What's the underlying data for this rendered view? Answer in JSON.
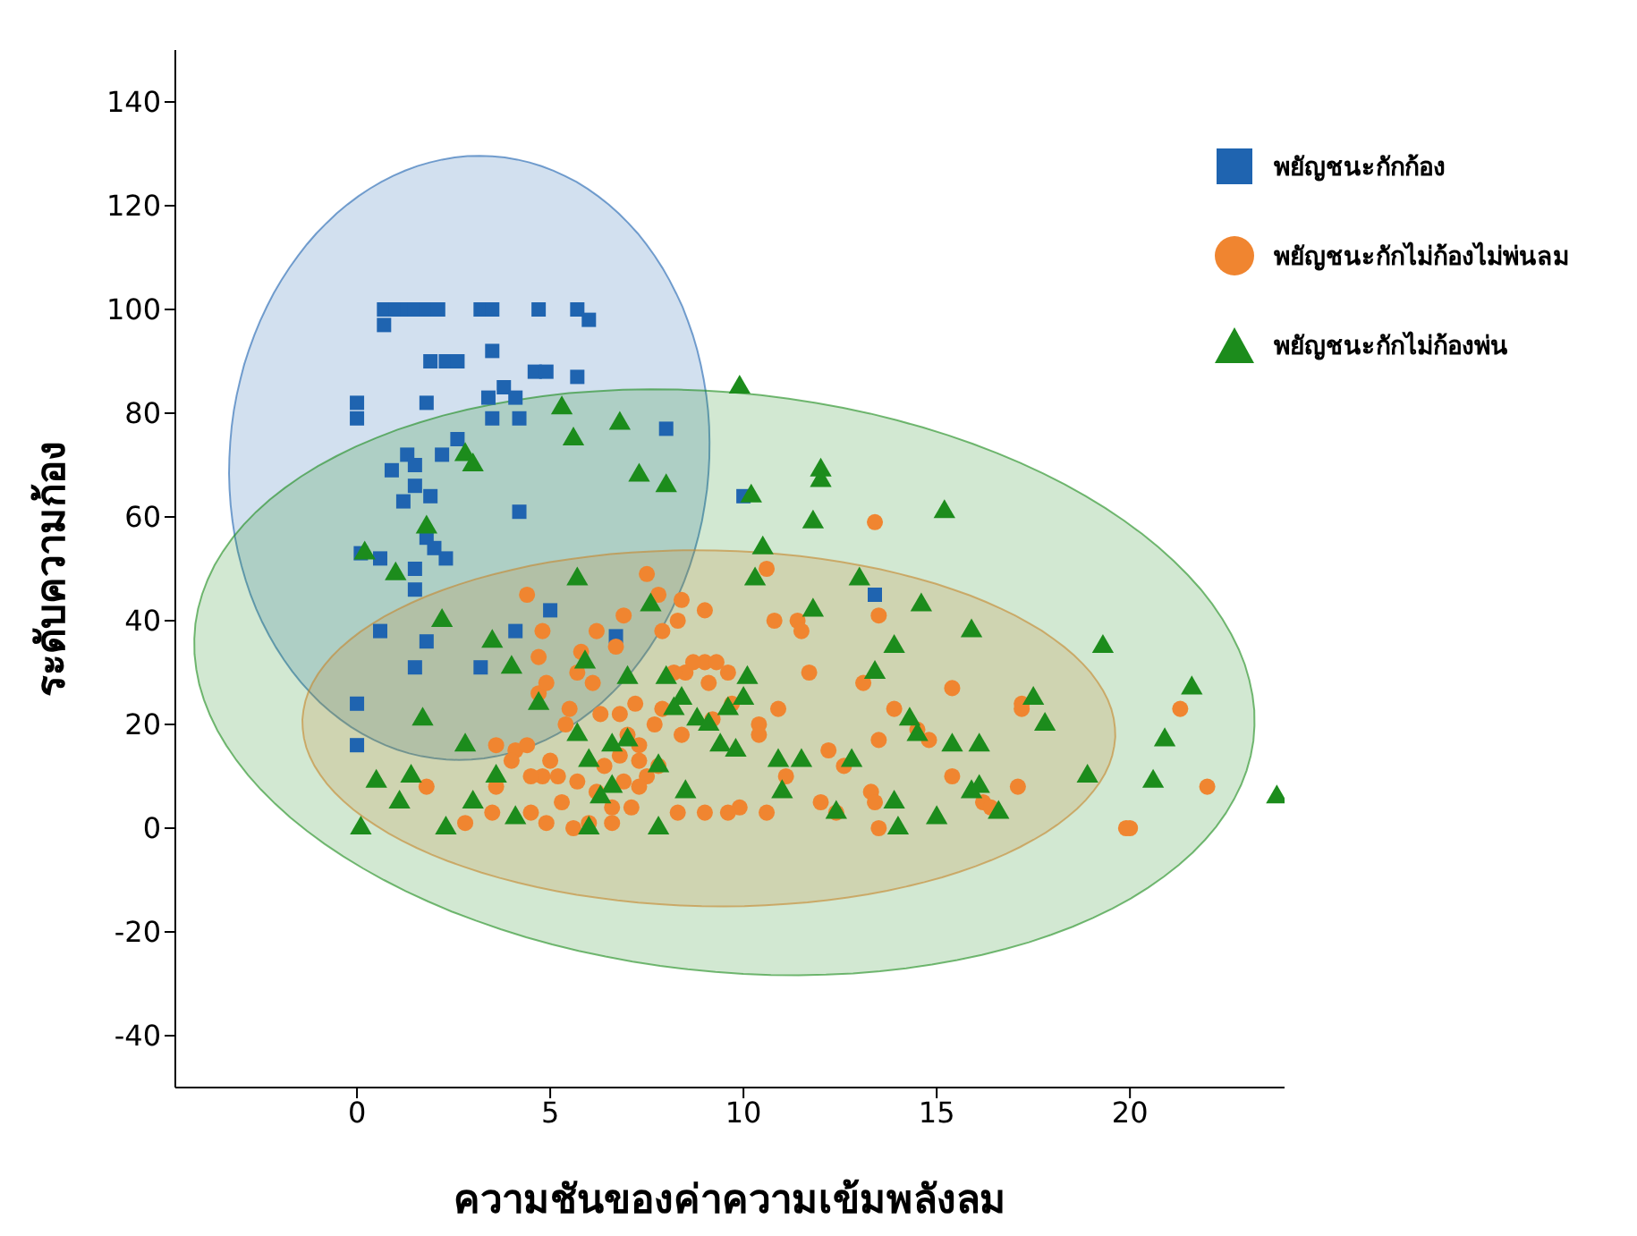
{
  "chart_data": {
    "type": "scatter",
    "xlabel": "ความชันของค่าความเข้มพลังลม",
    "ylabel": "ระดับความก้อง",
    "xlim": [
      -4.7,
      24
    ],
    "xticks": [
      0,
      5,
      10,
      15,
      20
    ],
    "ylim": [
      -50,
      150
    ],
    "yticks": [
      -40,
      -20,
      0,
      20,
      40,
      60,
      80,
      100,
      120,
      140
    ],
    "grid": false,
    "legend": "top right",
    "series": [
      {
        "name": "พยัญชนะกักก้อง",
        "color": "#1f64b0",
        "marker": "square",
        "x": [
          0.7,
          1,
          1.3,
          1.5,
          1.8,
          2.1,
          3.2,
          3.5,
          4.7,
          5.7,
          0.7,
          6,
          1.9,
          2.3,
          2.6,
          3.5,
          4.6,
          4.9,
          3.8,
          4.1,
          3.4,
          1.8,
          0,
          0,
          4.2,
          3.5,
          5.7,
          8,
          2.6,
          2.2,
          0.9,
          1.3,
          1.5,
          1.5,
          1.2,
          4.2,
          1.9,
          1.5,
          1.8,
          2,
          2.3,
          0.1,
          0.6,
          1.5,
          0.6,
          1.8,
          1.5,
          3.2,
          0,
          0,
          5,
          4.1,
          6.7,
          10,
          13.4
        ],
        "values": [
          100,
          100,
          100,
          100,
          100,
          100,
          100,
          100,
          100,
          100,
          97,
          98,
          90,
          90,
          90,
          92,
          88,
          88,
          85,
          83,
          83,
          82,
          82,
          79,
          79,
          79,
          87,
          77,
          75,
          72,
          69,
          72,
          70,
          66,
          63,
          61,
          64,
          50,
          56,
          54,
          52,
          53,
          52,
          46,
          38,
          36,
          31,
          31,
          24,
          16,
          42,
          38,
          37,
          64,
          45
        ]
      },
      {
        "name": "พยัญชนะกักไม่ก้องไม่พ่นลม",
        "color": "#f08530",
        "marker": "circle",
        "x": [
          13.4,
          10.6,
          7.5,
          7.8,
          4.4,
          8.4,
          8.3,
          6.2,
          4.8,
          6.9,
          9,
          5.8,
          4.7,
          6.7,
          7.9,
          10.8,
          11.4,
          11.5,
          13.5,
          11.7,
          13.1,
          15.4,
          17.2,
          13.9,
          14.8,
          13.5,
          12.2,
          12.6,
          13.3,
          13.4,
          13.5,
          12.4,
          12,
          11.1,
          10.6,
          9.9,
          9.6,
          9,
          10.4,
          10.4,
          10.9,
          9.7,
          9.2,
          9.1,
          9.6,
          8.5,
          9,
          8.7,
          8.2,
          9.3,
          7.2,
          7.9,
          7.7,
          8.4,
          6.8,
          7,
          7.3,
          6.3,
          5.4,
          5.5,
          6.1,
          5.7,
          4.7,
          4.9,
          3.6,
          4.1,
          4.4,
          5,
          5.2,
          5.7,
          5.3,
          5.6,
          6.2,
          6.6,
          7.1,
          6.9,
          7.5,
          7.3,
          7.8,
          8.3,
          4.8,
          4.5,
          4,
          3.6,
          3.5,
          2.8,
          1.8,
          4.5,
          4.9,
          6,
          6.6,
          6.4,
          6.8,
          7.3,
          16.2,
          16.4,
          17.1,
          15.4,
          14.5,
          19.9,
          20,
          21.3,
          22,
          17.2
        ],
        "values": [
          59,
          50,
          49,
          45,
          45,
          44,
          40,
          38,
          38,
          41,
          42,
          34,
          33,
          35,
          38,
          40,
          40,
          38,
          41,
          30,
          28,
          27,
          24,
          23,
          17,
          17,
          15,
          12,
          7,
          5,
          0,
          3,
          5,
          10,
          3,
          4,
          3,
          3,
          20,
          18,
          23,
          24,
          21,
          28,
          30,
          30,
          32,
          32,
          30,
          32,
          24,
          23,
          20,
          18,
          22,
          18,
          16,
          22,
          20,
          23,
          28,
          30,
          26,
          28,
          16,
          15,
          16,
          13,
          10,
          9,
          5,
          0,
          7,
          4,
          4,
          9,
          10,
          8,
          12,
          3,
          10,
          10,
          13,
          8,
          3,
          1,
          8,
          3,
          1,
          1,
          1,
          12,
          14,
          13,
          5,
          4,
          8,
          10,
          19,
          0,
          0,
          23,
          8,
          23
        ]
      },
      {
        "name": "พยัญชนะกักไม่ก้องพ่น",
        "color": "#1c8c1c",
        "marker": "triangle",
        "x": [
          9.9,
          5.3,
          6.8,
          5.6,
          2.8,
          3,
          7.3,
          8,
          10.2,
          12,
          12,
          11.8,
          15.2,
          1.8,
          0.2,
          1,
          5.7,
          7.6,
          10.5,
          10.3,
          13,
          2.2,
          3.5,
          4,
          5.9,
          7,
          8,
          8.4,
          10,
          10.1,
          11.8,
          14.6,
          15.9,
          13.9,
          13.4,
          19.3,
          21.6,
          17.5,
          17.8,
          20.9,
          14.3,
          14.5,
          15.4,
          16.1,
          10.9,
          11.5,
          12.8,
          18.9,
          20.6,
          11,
          13.9,
          15.9,
          16.1,
          16.6,
          15,
          12.4,
          14,
          23.8,
          4.7,
          1.7,
          2.8,
          5.7,
          7,
          6.6,
          8.2,
          8.8,
          9.1,
          9.6,
          9.4,
          9.8,
          6,
          3.6,
          0.5,
          1.4,
          1.1,
          3,
          6.3,
          6.6,
          7.8,
          8.5,
          0.1,
          2.3,
          4.1,
          6,
          7.8
        ],
        "values": [
          85,
          81,
          78,
          75,
          72,
          70,
          68,
          66,
          64,
          69,
          67,
          59,
          61,
          58,
          53,
          49,
          48,
          43,
          54,
          48,
          48,
          40,
          36,
          31,
          32,
          29,
          29,
          25,
          25,
          29,
          42,
          43,
          38,
          35,
          30,
          35,
          27,
          25,
          20,
          17,
          21,
          18,
          16,
          16,
          13,
          13,
          13,
          10,
          9,
          7,
          5,
          7,
          8,
          3,
          2,
          3,
          0,
          6,
          24,
          21,
          16,
          18,
          17,
          16,
          23,
          21,
          20,
          23,
          16,
          15,
          13,
          10,
          9,
          10,
          5,
          5,
          6,
          8,
          12,
          7,
          0,
          0,
          2,
          0,
          0
        ]
      }
    ]
  }
}
